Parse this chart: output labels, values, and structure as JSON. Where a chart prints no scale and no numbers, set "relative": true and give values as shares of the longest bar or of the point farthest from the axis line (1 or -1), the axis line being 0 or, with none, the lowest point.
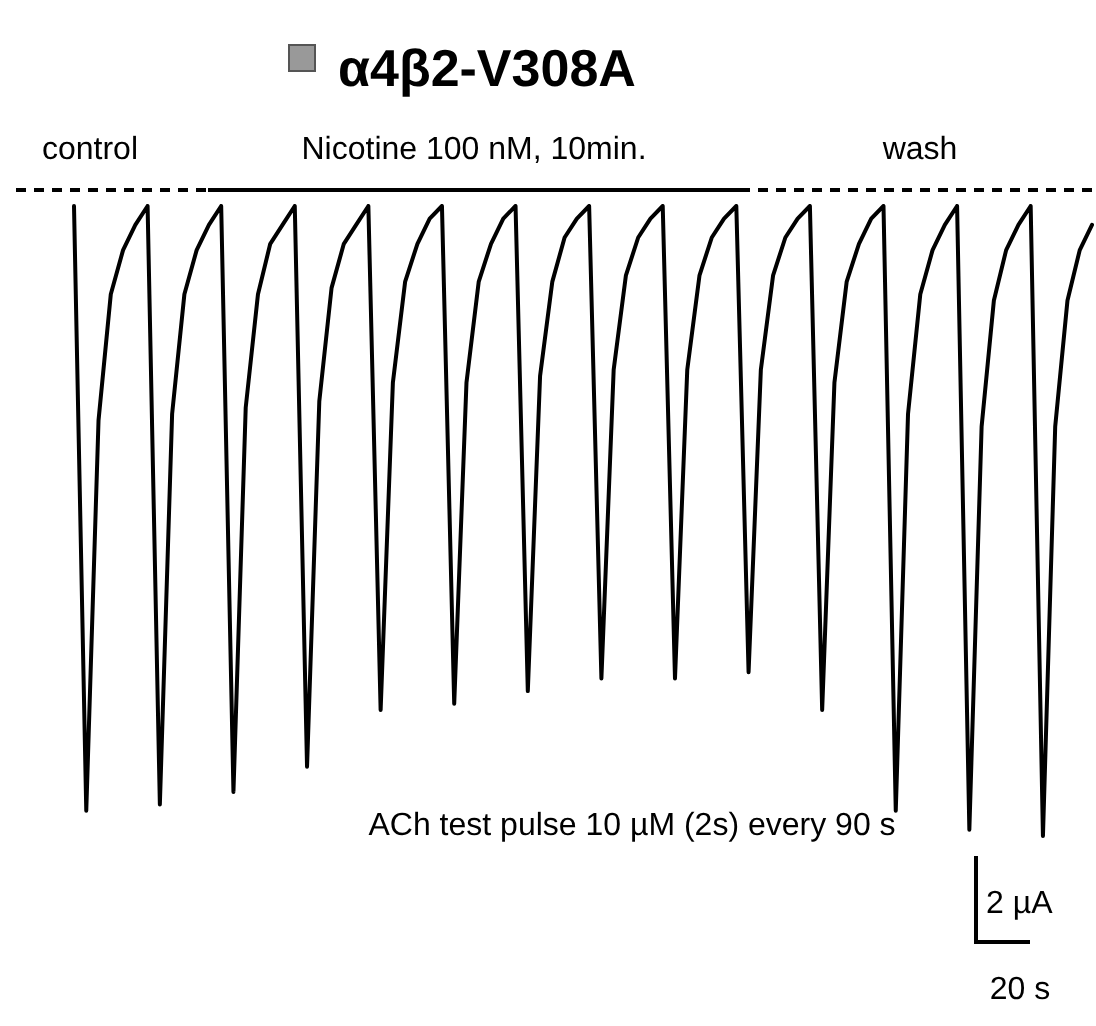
{
  "chart_data": {
    "type": "line",
    "title": "α4β2-V308A",
    "relative": true,
    "line_style": "solid",
    "categories": [
      null,
      null,
      null,
      null,
      null,
      null,
      null,
      null,
      null,
      null,
      null,
      null,
      null,
      null,
      null,
      null,
      null,
      null,
      null,
      null,
      null,
      null,
      null,
      null,
      null,
      null,
      null,
      null,
      null,
      null,
      null,
      null,
      null,
      null,
      null,
      null,
      null,
      null,
      null,
      null,
      null,
      null,
      null,
      null,
      null,
      null,
      null,
      null,
      null,
      null,
      null,
      null,
      null,
      null,
      null,
      null,
      null,
      null,
      null,
      null,
      null,
      null,
      null,
      null,
      null,
      null,
      null,
      null,
      null,
      null,
      null,
      null,
      null,
      null,
      null,
      null,
      null,
      null,
      null,
      null,
      null,
      null,
      null,
      null
    ],
    "series": [
      {
        "color": "#000000",
        "values": [
          1,
          0.04,
          0.66,
          0.86,
          0.93,
          0.97,
          1,
          0.05,
          0.67,
          0.86,
          0.93,
          0.97,
          1,
          0.07,
          0.68,
          0.86,
          0.94,
          0.97,
          1,
          0.11,
          0.69,
          0.87,
          0.94,
          0.97,
          1,
          0.2,
          0.72,
          0.88,
          0.94,
          0.98,
          1,
          0.21,
          0.72,
          0.88,
          0.94,
          0.98,
          1,
          0.23,
          0.73,
          0.88,
          0.95,
          0.98,
          1,
          0.25,
          0.74,
          0.89,
          0.95,
          0.98,
          1,
          0.25,
          0.74,
          0.89,
          0.95,
          0.98,
          1,
          0.26,
          0.74,
          0.89,
          0.95,
          0.98,
          1,
          0.2,
          0.72,
          0.88,
          0.94,
          0.98,
          1,
          0.04,
          0.67,
          0.86,
          0.93,
          0.97,
          1,
          0.01,
          0.65,
          0.85,
          0.93,
          0.97,
          1,
          0,
          0.65,
          0.85,
          0.93,
          0.97
        ]
      }
    ],
    "annotations": [
      "control",
      "Nicotine 100 nM, 10min.",
      "wash",
      "ACh test pulse 10 µM (2s) every 90 s",
      "2 µA",
      "20 s"
    ]
  }
}
